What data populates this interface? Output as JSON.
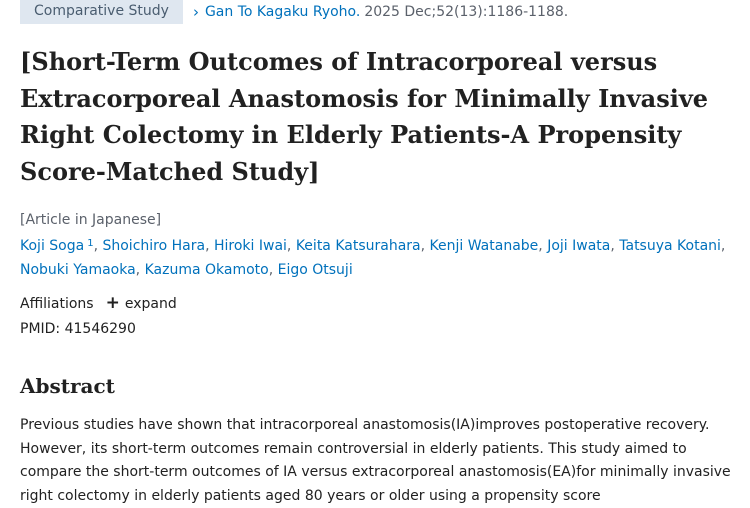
{
  "header": {
    "article_type": "Comparative Study",
    "journal_name": "Gan To Kagaku Ryoho.",
    "citation": "2025 Dec;52(13):1186-1188."
  },
  "title": "[Short-Term Outcomes of Intracorporeal versus Extracorporeal Anastomosis for Minimally Invasive Right Colectomy in Elderly Patients-A Propensity Score-Matched Study]",
  "language_note": "[Article in Japanese]",
  "authors": [
    {
      "name": "Koji Soga",
      "affiliation": "1"
    },
    {
      "name": "Shoichiro Hara"
    },
    {
      "name": "Hiroki Iwai"
    },
    {
      "name": "Keita Katsurahara"
    },
    {
      "name": "Kenji Watanabe"
    },
    {
      "name": "Joji Iwata"
    },
    {
      "name": "Tatsuya Kotani"
    },
    {
      "name": "Nobuki Yamaoka"
    },
    {
      "name": "Kazuma Okamoto"
    },
    {
      "name": "Eigo Otsuji"
    }
  ],
  "affiliations": {
    "label": "Affiliations",
    "expand_label": "expand",
    "icon": "plus-icon"
  },
  "pmid": {
    "label": "PMID:",
    "value": "41546290"
  },
  "abstract": {
    "heading": "Abstract",
    "text": "Previous studies have shown that intracorporeal anastomosis(IA)improves postoperative recovery. However, its short-term outcomes remain controversial in elderly patients. This study aimed to compare the short-term outcomes of IA versus extracorporeal anastomosis(EA)for minimally invasive right colectomy in elderly patients aged 80 years or older using a propensity score"
  },
  "colors": {
    "link": "#0071bc",
    "badge_bg": "#dfe7f0",
    "text": "#212121",
    "muted": "#5b616b"
  }
}
